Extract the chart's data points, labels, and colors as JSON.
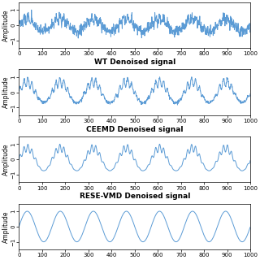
{
  "n_points": 1000,
  "xlim": [
    0,
    1000
  ],
  "ylim": [
    -1.5,
    1.5
  ],
  "yticks": [
    -1,
    0,
    1
  ],
  "xticks": [
    0,
    100,
    200,
    300,
    400,
    500,
    600,
    700,
    800,
    900,
    1000
  ],
  "line_color": "#5b9bd5",
  "line_width": 0.7,
  "ylabel": "Amplitude",
  "titles": [
    "WT Denoised signal",
    "CEEMD Denoised signal",
    "RESE-VMD Denoised signal"
  ],
  "title_fontsize": 6.5,
  "tick_fontsize": 5.0,
  "label_fontsize": 5.5,
  "bg_color": "#ffffff",
  "fig_bg_color": "#ffffff",
  "f_resp": 0.007,
  "f_card": 0.058
}
